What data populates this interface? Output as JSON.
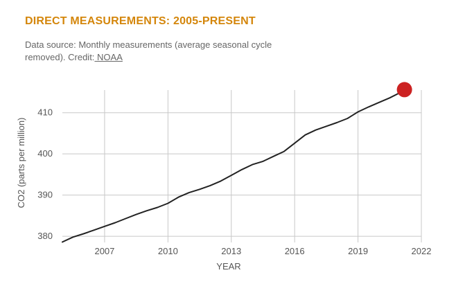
{
  "header": {
    "title": "DIRECT MEASUREMENTS: 2005-PRESENT",
    "source_text": "Data source: Monthly measurements (average seasonal cycle removed). Credit:",
    "credit_link": " NOAA"
  },
  "colors": {
    "title": "#d4860b",
    "line": "#222222",
    "marker": "#cc2222",
    "grid": "#c8c8c8"
  },
  "chart_data": {
    "type": "line",
    "title": "DIRECT MEASUREMENTS: 2005-PRESENT",
    "xlabel": "YEAR",
    "ylabel": "CO2 (parts per million)",
    "xlim": [
      2005.0,
      2022.0
    ],
    "ylim": [
      378.5,
      415.5
    ],
    "x_ticks": [
      2007,
      2010,
      2013,
      2016,
      2019,
      2022
    ],
    "y_ticks": [
      380,
      390,
      400,
      410
    ],
    "grid": true,
    "series": [
      {
        "x": [
          2005.0,
          2005.5,
          2006.0,
          2006.5,
          2007.0,
          2007.5,
          2008.0,
          2008.5,
          2009.0,
          2009.5,
          2010.0,
          2010.5,
          2011.0,
          2011.5,
          2012.0,
          2012.5,
          2013.0,
          2013.5,
          2014.0,
          2014.5,
          2015.0,
          2015.5,
          2016.0,
          2016.5,
          2017.0,
          2017.5,
          2018.0,
          2018.5,
          2019.0,
          2019.5,
          2020.0,
          2020.5,
          2021.0,
          2021.2
        ],
        "y": [
          378.6,
          379.8,
          380.6,
          381.5,
          382.4,
          383.3,
          384.3,
          385.3,
          386.2,
          387.0,
          388.0,
          389.5,
          390.6,
          391.4,
          392.3,
          393.4,
          394.8,
          396.2,
          397.4,
          398.2,
          399.4,
          400.6,
          402.6,
          404.6,
          405.8,
          406.7,
          407.6,
          408.6,
          410.2,
          411.4,
          412.5,
          413.6,
          414.9,
          415.6
        ]
      }
    ],
    "highlight_point": {
      "x": 2021.2,
      "y": 415.6
    }
  }
}
